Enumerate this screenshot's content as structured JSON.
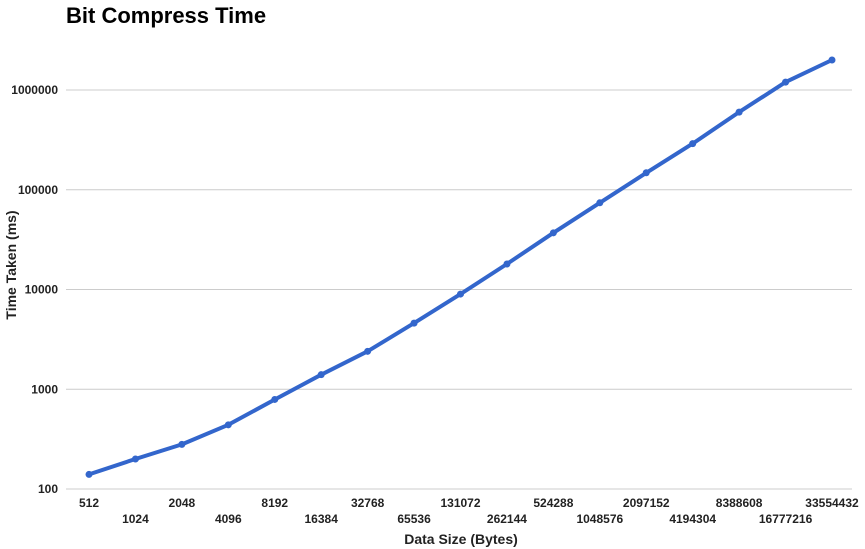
{
  "chart_data": {
    "type": "line",
    "title": "Bit Compress Time",
    "xlabel": "Data Size (Bytes)",
    "ylabel": "Time Taken (ms)",
    "yscale": "log",
    "ylim": [
      100,
      2000000
    ],
    "yticks": [
      "100",
      "1000",
      "10000",
      "100000",
      "1000000"
    ],
    "grid": true,
    "line_color": "#3366cc",
    "categories": [
      "512",
      "1024",
      "2048",
      "4096",
      "8192",
      "16384",
      "32768",
      "65536",
      "131072",
      "262144",
      "524288",
      "1048576",
      "2097152",
      "4194304",
      "8388608",
      "16777216",
      "33554432"
    ],
    "series": [
      {
        "values": [
          140,
          200,
          280,
          440,
          790,
          1400,
          2400,
          4600,
          9000,
          18000,
          37000,
          74000,
          148000,
          290000,
          600000,
          1200000,
          2000000
        ]
      }
    ]
  }
}
